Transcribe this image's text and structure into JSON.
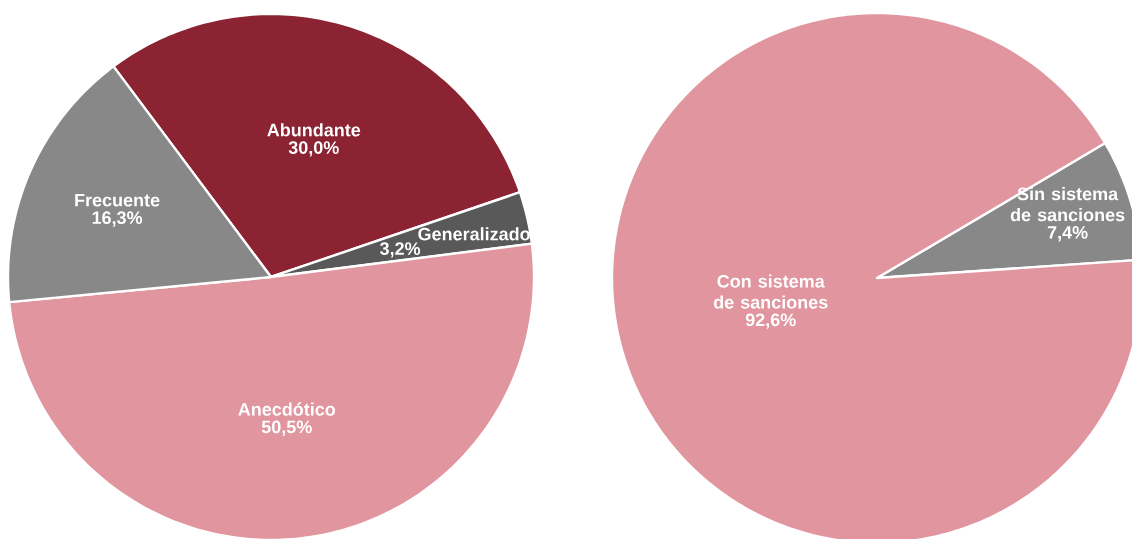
{
  "chart_data": [
    {
      "type": "pie",
      "categories": [
        "Abundante",
        "Generalizado",
        "Anecdótico",
        "Frecuente"
      ],
      "values": [
        30.0,
        3.2,
        50.5,
        16.3
      ],
      "colors": [
        "#8b2332",
        "#595959",
        "#e0959f",
        "#888889"
      ],
      "value_labels": [
        "30,0%",
        "3,2%",
        "50,5%",
        "16,3%"
      ]
    },
    {
      "type": "pie",
      "categories": [
        "Sin sistema de sanciones",
        "Con sistema de sanciones"
      ],
      "values": [
        7.4,
        92.6
      ],
      "colors": [
        "#888889",
        "#e0959f"
      ],
      "value_labels": [
        "7,4%",
        "92,6%"
      ]
    }
  ]
}
